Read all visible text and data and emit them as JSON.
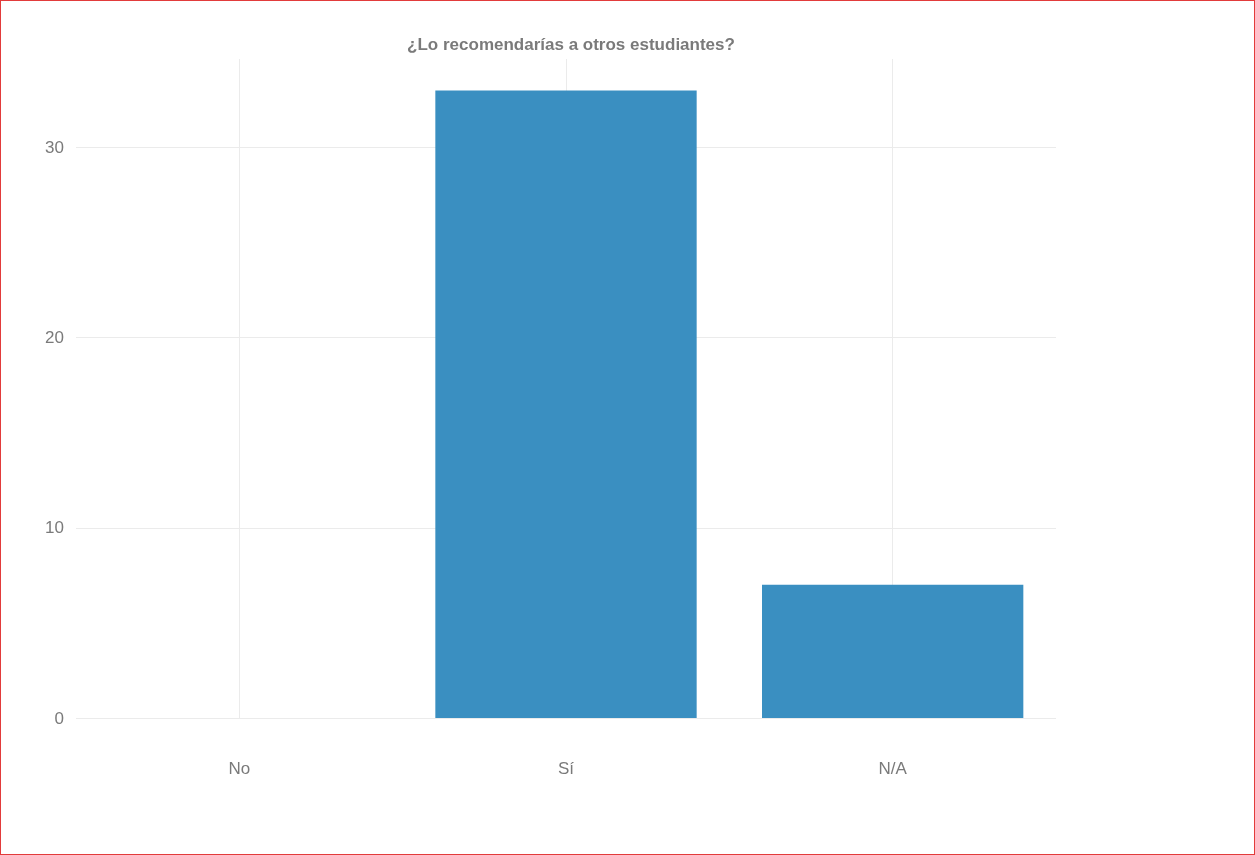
{
  "chart_data": {
    "type": "bar",
    "title": "¿Lo recomendarías a otros estudiantes?",
    "categories": [
      "No",
      "Sí",
      "N/A"
    ],
    "values": [
      0,
      33,
      7
    ],
    "color": "#3a8fc1",
    "ylim": [
      0,
      34.65
    ],
    "yticks": [
      0,
      10,
      20,
      30
    ],
    "grid": true
  }
}
